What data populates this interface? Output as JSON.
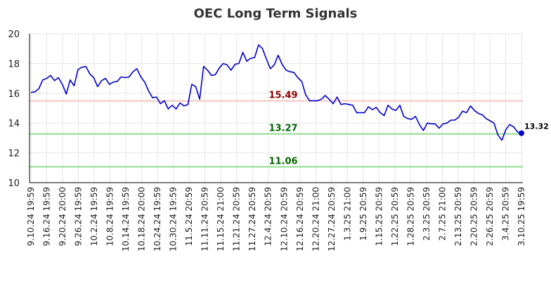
{
  "chart_data": {
    "type": "line",
    "title": "OEC Long Term Signals",
    "xlabel": "",
    "ylabel": "",
    "ylim": [
      10,
      20
    ],
    "yticks": [
      10,
      12,
      14,
      16,
      18,
      20
    ],
    "grid": true,
    "xtick_labels": [
      "9.10.24 19:59",
      "9.16.24 19:59",
      "9.20.24 20:00",
      "9.26.24 19:59",
      "10.2.24 19:59",
      "10.8.24 19:59",
      "10.14.24 19:59",
      "10.18.24 20:00",
      "10.24.24 19:59",
      "10.30.24 19:59",
      "11.5.24 20:59",
      "11.11.24 20:59",
      "11.15.24 21:00",
      "11.21.24 20:59",
      "11.27.24 20:59",
      "12.4.24 20:59",
      "12.10.24 20:59",
      "12.16.24 20:59",
      "12.20.24 21:00",
      "12.27.24 20:59",
      "1.3.25 21:00",
      "1.9.25 20:59",
      "1.15.25 20:59",
      "1.22.25 20:59",
      "1.28.25 20:59",
      "2.3.25 20:59",
      "2.7.25 21:00",
      "2.13.25 20:59",
      "2.20.25 20:59",
      "2.26.25 20:59",
      "3.4.25 20:59",
      "3.10.25 19:59"
    ],
    "values": [
      16.05,
      16.1,
      16.3,
      16.9,
      17.0,
      17.2,
      16.85,
      17.05,
      16.6,
      15.95,
      16.9,
      16.5,
      17.6,
      17.75,
      17.8,
      17.3,
      17.05,
      16.45,
      16.85,
      17.0,
      16.6,
      16.75,
      16.8,
      17.1,
      17.05,
      17.1,
      17.45,
      17.65,
      17.1,
      16.75,
      16.15,
      15.7,
      15.75,
      15.3,
      15.5,
      14.95,
      15.2,
      14.95,
      15.35,
      15.15,
      15.25,
      16.6,
      16.45,
      15.6,
      17.8,
      17.55,
      17.2,
      17.25,
      17.7,
      18.0,
      17.9,
      17.55,
      17.95,
      18.0,
      18.75,
      18.15,
      18.35,
      18.4,
      19.25,
      19.0,
      18.3,
      17.65,
      17.9,
      18.55,
      17.95,
      17.55,
      17.45,
      17.4,
      17.05,
      16.8,
      15.9,
      15.5,
      15.5,
      15.5,
      15.6,
      15.85,
      15.6,
      15.3,
      15.75,
      15.25,
      15.3,
      15.25,
      15.2,
      14.7,
      14.7,
      14.7,
      15.1,
      14.9,
      15.05,
      14.7,
      14.5,
      15.2,
      14.95,
      14.85,
      15.2,
      14.45,
      14.3,
      14.25,
      14.45,
      13.9,
      13.5,
      14.0,
      13.95,
      13.95,
      13.65,
      13.95,
      14.0,
      14.2,
      14.2,
      14.4,
      14.8,
      14.7,
      15.15,
      14.85,
      14.65,
      14.55,
      14.3,
      14.15,
      14.0,
      13.2,
      12.85,
      13.55,
      13.9,
      13.75,
      13.4,
      13.32
    ],
    "series_color": "#0000cc",
    "last_value_label": "13.32",
    "levels": [
      {
        "value": 15.49,
        "label": "15.49",
        "line_color": "#f4c6c0",
        "text_color": "#8b0000"
      },
      {
        "value": 13.27,
        "label": "13.27",
        "line_color": "#90dc90",
        "text_color": "#006400"
      },
      {
        "value": 11.06,
        "label": "11.06",
        "line_color": "#90dc90",
        "text_color": "#006400"
      }
    ]
  }
}
